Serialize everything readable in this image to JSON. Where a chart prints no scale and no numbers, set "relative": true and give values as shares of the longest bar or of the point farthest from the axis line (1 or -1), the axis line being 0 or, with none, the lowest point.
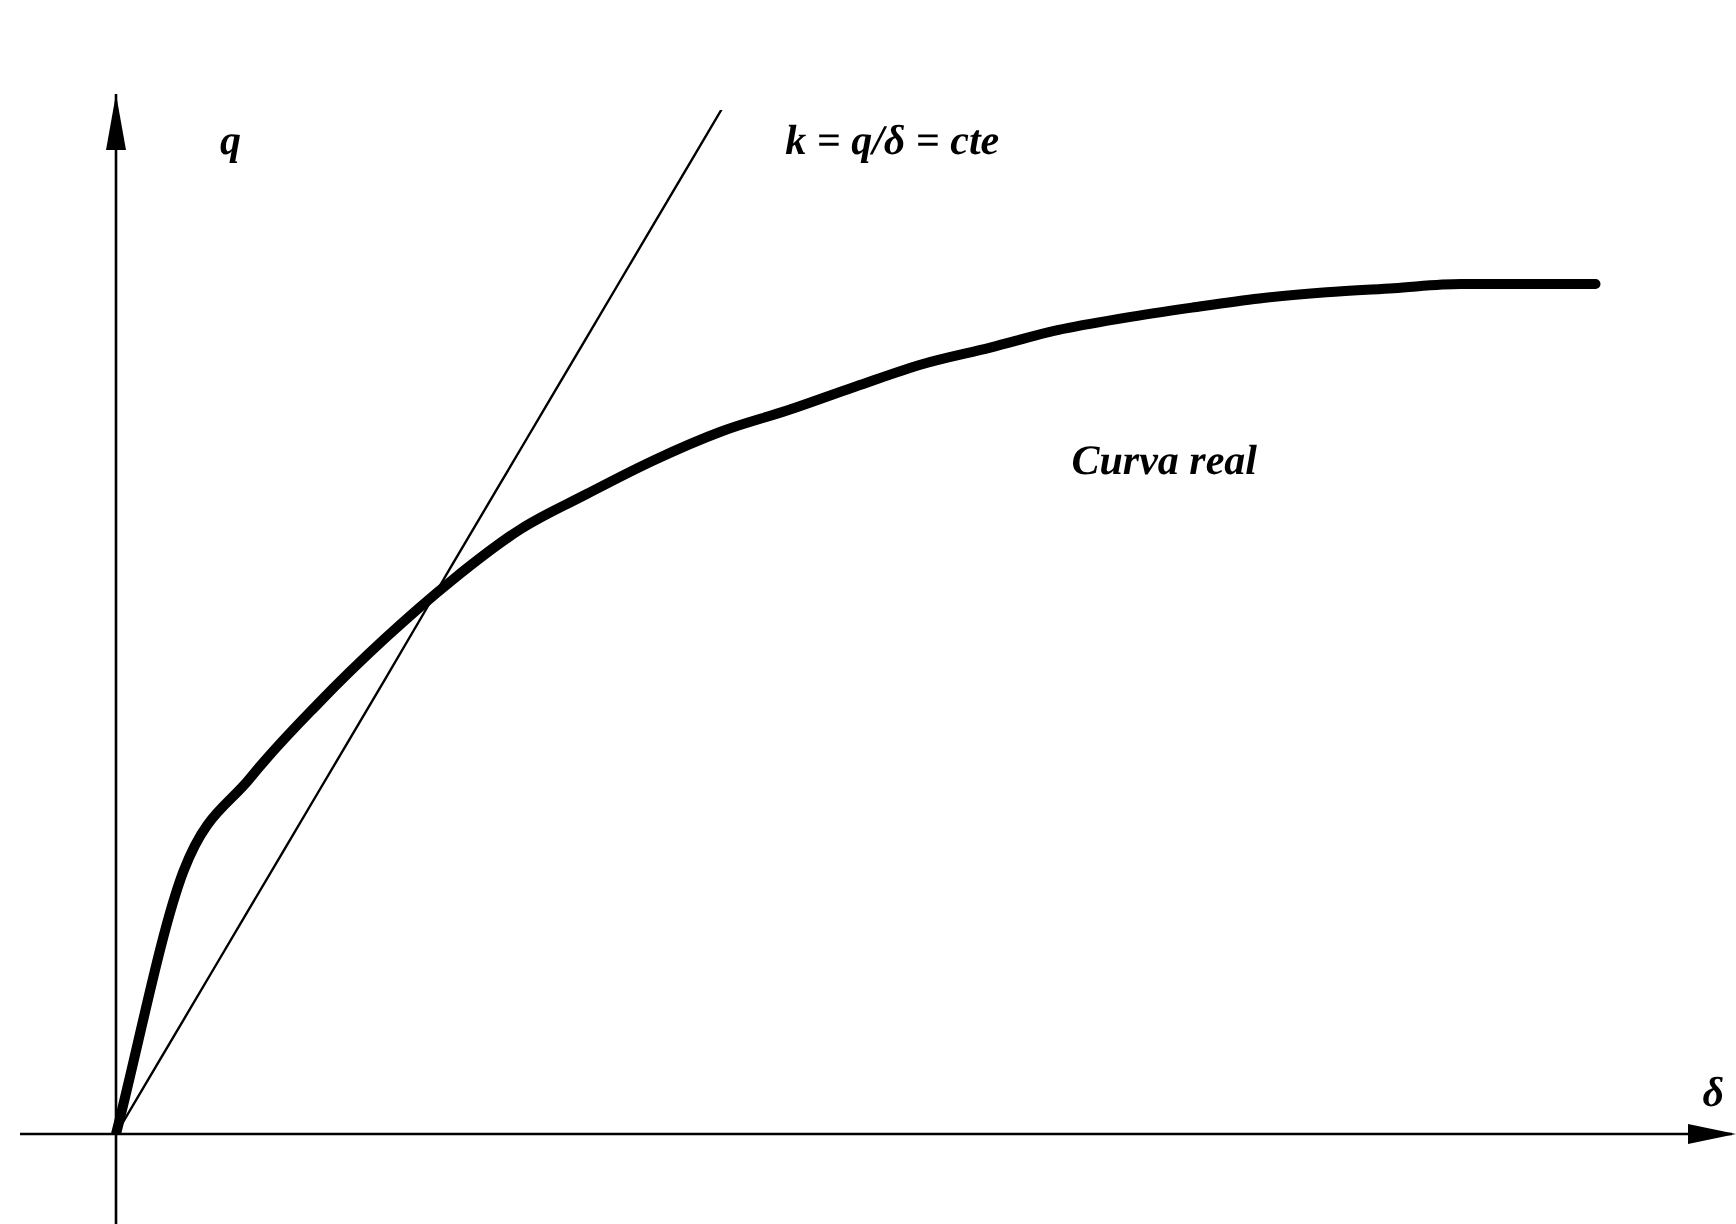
{
  "chart_data": {
    "type": "line",
    "relative": true,
    "xlabel": "δ",
    "ylabel": "q",
    "legend": false,
    "grid": false,
    "marker": "none",
    "categories": [
      null,
      null,
      null,
      null,
      null,
      null,
      null,
      null,
      null,
      null,
      null,
      null,
      null,
      null,
      null,
      null,
      null,
      null,
      null,
      null,
      null,
      null,
      null,
      null,
      null
    ],
    "series": [
      {
        "name": "k = q/δ = cte",
        "color": "#000000",
        "values": [
          0,
          0.111,
          0.222,
          0.333,
          0.444,
          0.556,
          0.667,
          0.778,
          0.889,
          1,
          null,
          null,
          null,
          null,
          null,
          null,
          null,
          null,
          null,
          null,
          null,
          null,
          null,
          null,
          null
        ]
      },
      {
        "name": "Curva real",
        "color": "#000000",
        "values": [
          0,
          0.256,
          0.348,
          0.42,
          0.484,
          0.541,
          0.59,
          0.625,
          0.658,
          0.686,
          0.707,
          0.73,
          0.752,
          0.768,
          0.785,
          0.797,
          0.807,
          0.816,
          0.822,
          0.826,
          0.83,
          0.83,
          0.83,
          null,
          null
        ]
      }
    ]
  }
}
